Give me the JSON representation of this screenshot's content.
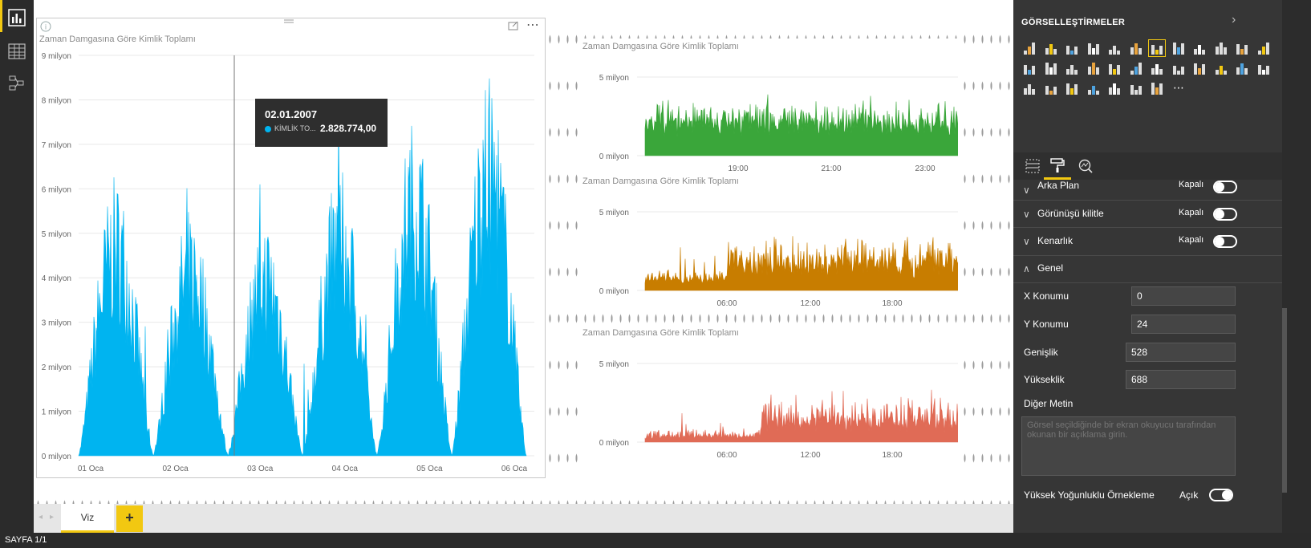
{
  "canvas": {
    "main_chart": {
      "title": "Zaman Damgasına Göre Kimlik Toplamı",
      "y_ticks": [
        "9 milyon",
        "8 milyon",
        "7 milyon",
        "6 milyon",
        "5 milyon",
        "4 milyon",
        "3 milyon",
        "2 milyon",
        "1 milyon",
        "0 milyon"
      ],
      "x_ticks": [
        "01 Oca",
        "02 Oca",
        "03 Oca",
        "04 Oca",
        "05 Oca",
        "06 Oca"
      ],
      "color": "#00b4f0",
      "tooltip": {
        "date": "02.01.2007",
        "series_label": "KİMLİK TO...",
        "value": "2.828.774,00"
      }
    },
    "small_charts": [
      {
        "title": "Zaman Damgasına Göre Kimlik Toplamı",
        "y_ticks": [
          "5 milyon",
          "0 milyon"
        ],
        "x_ticks": [
          "19:00",
          "21:00",
          "23:00"
        ],
        "color": "#3aa63a"
      },
      {
        "title": "Zaman Damgasına Göre Kimlik Toplamı",
        "y_ticks": [
          "5 milyon",
          "0 milyon"
        ],
        "x_ticks": [
          "06:00",
          "12:00",
          "18:00"
        ],
        "color": "#c87d00"
      },
      {
        "title": "Zaman Damgasına Göre Kimlik Toplamı",
        "y_ticks": [
          "5 milyon",
          "0 milyon"
        ],
        "x_ticks": [
          "06:00",
          "12:00",
          "18:00"
        ],
        "color": "#e06b56"
      }
    ]
  },
  "tabs": {
    "current": "Viz",
    "add_label": "+"
  },
  "status": {
    "page": "SAYFA 1/1"
  },
  "panel": {
    "header": "GÖRSELLEŞTİRMELER",
    "sections": [
      {
        "label": "Arka Plan",
        "state": "Kapalı"
      },
      {
        "label": "Görünüşü kilitle",
        "state": "Kapalı"
      },
      {
        "label": "Kenarlık",
        "state": "Kapalı"
      }
    ],
    "general": {
      "label": "Genel",
      "x_label": "X Konumu",
      "x_value": "0",
      "y_label": "Y Konumu",
      "y_value": "24",
      "w_label": "Genişlik",
      "w_value": "528",
      "h_label": "Yükseklik",
      "h_value": "688",
      "alt_label": "Diğer Metin",
      "alt_placeholder": "Görsel seçildiğinde bir ekran okuyucu tarafından okunan bir açıklama girin.",
      "hd_label": "Yüksek Yoğunluklu Örnekleme",
      "hd_state": "Açık"
    }
  }
}
